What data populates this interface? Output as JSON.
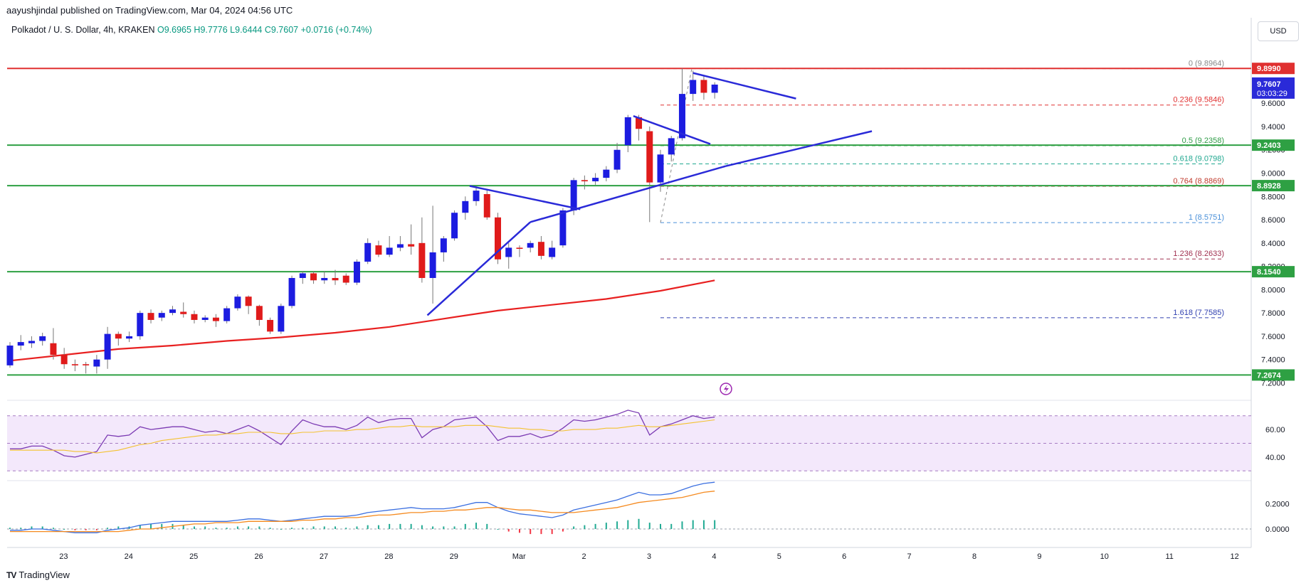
{
  "header": {
    "publisher": "aayushjindal published on TradingView.com, Mar 04, 2024 04:56 UTC",
    "symbol": "Polkadot / U. S. Dollar, 4h, KRAKEN",
    "open": "O9.6965",
    "high": "H9.7776",
    "low": "L9.6444",
    "close": "C9.7607",
    "change": "+0.0716 (+0.74%)"
  },
  "currency_button": "USD",
  "footer": {
    "logo_text": "TradingView"
  },
  "colors": {
    "up": "#1c1ce0",
    "down": "#e01b1b",
    "ma": "#e82020",
    "support": "#2ea043",
    "resistance": "#e03030",
    "trendline": "#2a2ad8",
    "rsi": "#7b3ab3",
    "rsi_ma": "#f3c230",
    "macd": "#3b6fe0",
    "signal": "#f58a1f"
  },
  "chart_data": [
    {
      "type": "candlestick",
      "title": "Polkadot / U. S. Dollar, 4h, KRAKEN",
      "ylim": [
        7.16,
        10.12
      ],
      "y_ticks": [
        "9.6000",
        "9.4000",
        "9.2000",
        "9.0000",
        "8.8000",
        "8.6000",
        "8.4000",
        "8.2000",
        "8.0000",
        "7.8000",
        "7.6000",
        "7.4000",
        "7.2000"
      ],
      "x_day_index": [
        0,
        1,
        2,
        3,
        4,
        5,
        6,
        7,
        8,
        9,
        10,
        11,
        12,
        13,
        14,
        15,
        16,
        17,
        18,
        19
      ],
      "x_labels": [
        "23",
        "24",
        "25",
        "26",
        "27",
        "28",
        "29",
        "Mar",
        "2",
        "3",
        "4",
        "5",
        "6",
        "7",
        "8",
        "9",
        "10",
        "11",
        "12"
      ],
      "x_label_day_index": [
        1,
        2,
        3,
        4,
        5,
        6,
        7,
        8,
        9,
        10,
        11,
        12,
        13,
        14,
        15,
        16,
        17,
        18,
        19
      ],
      "candles": [
        [
          7.35,
          7.52,
          7.55,
          7.33
        ],
        [
          7.52,
          7.55,
          7.61,
          7.48
        ],
        [
          7.54,
          7.56,
          7.6,
          7.5
        ],
        [
          7.56,
          7.6,
          7.63,
          7.52
        ],
        [
          7.54,
          7.44,
          7.67,
          7.4
        ],
        [
          7.44,
          7.36,
          7.5,
          7.32
        ],
        [
          7.36,
          7.35,
          7.4,
          7.3
        ],
        [
          7.36,
          7.35,
          7.38,
          7.28
        ],
        [
          7.34,
          7.4,
          7.44,
          7.28
        ],
        [
          7.4,
          7.62,
          7.68,
          7.32
        ],
        [
          7.62,
          7.58,
          7.64,
          7.52
        ],
        [
          7.58,
          7.6,
          7.64,
          7.55
        ],
        [
          7.6,
          7.8,
          7.82,
          7.57
        ],
        [
          7.8,
          7.74,
          7.83,
          7.71
        ],
        [
          7.76,
          7.8,
          7.82,
          7.73
        ],
        [
          7.8,
          7.83,
          7.86,
          7.78
        ],
        [
          7.81,
          7.79,
          7.89,
          7.76
        ],
        [
          7.79,
          7.74,
          7.82,
          7.71
        ],
        [
          7.74,
          7.76,
          7.78,
          7.72
        ],
        [
          7.76,
          7.73,
          7.79,
          7.68
        ],
        [
          7.73,
          7.84,
          7.86,
          7.71
        ],
        [
          7.84,
          7.94,
          7.96,
          7.82
        ],
        [
          7.94,
          7.86,
          7.95,
          7.79
        ],
        [
          7.86,
          7.74,
          7.87,
          7.69
        ],
        [
          7.74,
          7.64,
          7.76,
          7.62
        ],
        [
          7.64,
          7.86,
          7.88,
          7.62
        ],
        [
          7.86,
          8.1,
          8.12,
          7.84
        ],
        [
          8.1,
          8.14,
          8.16,
          8.05
        ],
        [
          8.14,
          8.08,
          8.16,
          8.05
        ],
        [
          8.08,
          8.1,
          8.16,
          8.05
        ],
        [
          8.1,
          8.08,
          8.17,
          8.04
        ],
        [
          8.12,
          8.06,
          8.14,
          8.04
        ],
        [
          8.06,
          8.24,
          8.26,
          8.04
        ],
        [
          8.24,
          8.4,
          8.44,
          8.22
        ],
        [
          8.38,
          8.3,
          8.42,
          8.28
        ],
        [
          8.3,
          8.36,
          8.46,
          8.28
        ],
        [
          8.36,
          8.39,
          8.46,
          8.33
        ],
        [
          8.39,
          8.37,
          8.56,
          8.3
        ],
        [
          8.4,
          8.1,
          8.62,
          8.06
        ],
        [
          8.1,
          8.32,
          8.72,
          7.88
        ],
        [
          8.32,
          8.44,
          8.46,
          8.24
        ],
        [
          8.44,
          8.66,
          8.68,
          8.42
        ],
        [
          8.66,
          8.76,
          8.8,
          8.6
        ],
        [
          8.76,
          8.85,
          8.89,
          8.72
        ],
        [
          8.82,
          8.62,
          8.86,
          8.6
        ],
        [
          8.62,
          8.26,
          8.66,
          8.22
        ],
        [
          8.28,
          8.36,
          8.4,
          8.18
        ],
        [
          8.36,
          8.35,
          8.38,
          8.28
        ],
        [
          8.36,
          8.4,
          8.42,
          8.32
        ],
        [
          8.41,
          8.29,
          8.46,
          8.26
        ],
        [
          8.28,
          8.36,
          8.42,
          8.26
        ],
        [
          8.38,
          8.68,
          8.7,
          8.36
        ],
        [
          8.68,
          8.94,
          8.96,
          8.64
        ],
        [
          8.94,
          8.93,
          8.98,
          8.86
        ],
        [
          8.93,
          8.96,
          9.0,
          8.9
        ],
        [
          8.96,
          9.03,
          9.06,
          8.93
        ],
        [
          9.03,
          9.2,
          9.26,
          9.0
        ],
        [
          9.24,
          9.48,
          9.5,
          9.18
        ],
        [
          9.48,
          9.38,
          9.5,
          9.28
        ],
        [
          9.36,
          8.92,
          9.4,
          8.58
        ],
        [
          8.92,
          9.16,
          9.2,
          8.84
        ],
        [
          9.16,
          9.3,
          9.32,
          9.1
        ],
        [
          9.3,
          9.68,
          9.9,
          9.28
        ],
        [
          9.68,
          9.8,
          9.88,
          9.62
        ],
        [
          9.8,
          9.69,
          9.84,
          9.63
        ],
        [
          9.69,
          9.76,
          9.78,
          9.64
        ]
      ],
      "moving_average": [
        [
          0,
          7.39
        ],
        [
          5,
          7.44
        ],
        [
          10,
          7.49
        ],
        [
          15,
          7.52
        ],
        [
          20,
          7.56
        ],
        [
          25,
          7.59
        ],
        [
          30,
          7.63
        ],
        [
          35,
          7.68
        ],
        [
          40,
          7.75
        ],
        [
          45,
          7.82
        ],
        [
          50,
          7.87
        ],
        [
          55,
          7.92
        ],
        [
          60,
          7.99
        ],
        [
          65,
          8.08
        ]
      ],
      "horizontal_levels": [
        {
          "price": 9.899,
          "label": "9.8990",
          "kind": "resistance"
        },
        {
          "price": 9.2403,
          "label": "9.2403",
          "kind": "support"
        },
        {
          "price": 8.8928,
          "label": "8.8928",
          "kind": "support"
        },
        {
          "price": 8.154,
          "label": "8.1540",
          "kind": "support"
        },
        {
          "price": 7.2674,
          "label": "7.2674",
          "kind": "support"
        }
      ],
      "current_price": {
        "label": "9.7607",
        "countdown": "03:03:29"
      },
      "fibonacci": [
        {
          "ratio": "0",
          "value": "9.8964",
          "price": 9.8964,
          "color": "#888888"
        },
        {
          "ratio": "0.236",
          "value": "9.5846",
          "price": 9.5846,
          "color": "#e03030"
        },
        {
          "ratio": "0.5",
          "value": "9.2358",
          "price": 9.2358,
          "color": "#2e9c46"
        },
        {
          "ratio": "0.618",
          "value": "9.0798",
          "price": 9.0798,
          "color": "#20a890"
        },
        {
          "ratio": "0.764",
          "value": "8.8869",
          "price": 8.8869,
          "color": "#c0392b"
        },
        {
          "ratio": "1",
          "value": "8.5751",
          "price": 8.5751,
          "color": "#4a90d9"
        },
        {
          "ratio": "1.236",
          "value": "8.2633",
          "price": 8.2633,
          "color": "#a03050"
        },
        {
          "ratio": "1.618",
          "value": "7.7585",
          "price": 7.7585,
          "color": "#3040b0"
        }
      ],
      "trendlines": [
        {
          "from": [
            38.5,
            7.78
          ],
          "to": [
            48.0,
            8.58
          ]
        },
        {
          "from": [
            48.0,
            8.58
          ],
          "to": [
            66.0,
            9.06
          ]
        },
        {
          "from": [
            66.0,
            9.06
          ],
          "to": [
            79.5,
            9.36
          ]
        },
        {
          "from": [
            42.4,
            8.89
          ],
          "to": [
            52.6,
            8.69
          ]
        },
        {
          "from": [
            57.5,
            9.49
          ],
          "to": [
            64.6,
            9.25
          ]
        },
        {
          "from": [
            63.0,
            9.86
          ],
          "to": [
            72.5,
            9.64
          ]
        }
      ]
    },
    {
      "type": "line",
      "title": "RSI",
      "ylim": [
        25,
        75
      ],
      "y_ticks": [
        "60.00",
        "40.00"
      ],
      "series": [
        {
          "name": "RSI",
          "values": [
            46,
            46,
            48,
            48,
            45,
            41,
            40,
            42,
            44,
            56,
            55,
            56,
            62,
            60,
            61,
            62,
            62,
            60,
            58,
            59,
            57,
            60,
            63,
            59,
            54,
            49,
            59,
            67,
            64,
            62,
            62,
            60,
            63,
            69,
            65,
            67,
            68,
            68,
            54,
            60,
            62,
            67,
            68,
            69,
            62,
            52,
            55,
            55,
            57,
            54,
            56,
            61,
            67,
            66,
            67,
            69,
            71,
            74,
            72,
            56,
            62,
            64,
            67,
            70,
            68,
            69
          ]
        },
        {
          "name": "RSI-based MA",
          "values": [
            45,
            45,
            45,
            45,
            45,
            45,
            44,
            44,
            43,
            44,
            45,
            47,
            49,
            50,
            52,
            53,
            54,
            55,
            56,
            56,
            57,
            57,
            58,
            58,
            58,
            57,
            57,
            58,
            58,
            59,
            59,
            59,
            60,
            60,
            61,
            62,
            62,
            63,
            62,
            62,
            62,
            62,
            63,
            63,
            63,
            62,
            61,
            61,
            60,
            60,
            59,
            59,
            60,
            60,
            60,
            61,
            61,
            62,
            63,
            62,
            62,
            63,
            64,
            65,
            66,
            67
          ]
        }
      ]
    },
    {
      "type": "line",
      "title": "MACD",
      "ylim": [
        -0.09,
        0.36
      ],
      "y_ticks": [
        "0.2000",
        "0.0000"
      ],
      "series": [
        {
          "name": "MACD",
          "values": [
            -0.01,
            -0.01,
            0.0,
            0.0,
            -0.01,
            -0.02,
            -0.03,
            -0.03,
            -0.03,
            -0.01,
            0.0,
            0.01,
            0.03,
            0.04,
            0.05,
            0.06,
            0.06,
            0.06,
            0.06,
            0.06,
            0.06,
            0.07,
            0.08,
            0.08,
            0.07,
            0.06,
            0.07,
            0.08,
            0.09,
            0.1,
            0.1,
            0.1,
            0.11,
            0.13,
            0.14,
            0.15,
            0.16,
            0.17,
            0.16,
            0.16,
            0.16,
            0.17,
            0.19,
            0.21,
            0.21,
            0.17,
            0.14,
            0.12,
            0.11,
            0.1,
            0.09,
            0.11,
            0.15,
            0.17,
            0.19,
            0.21,
            0.23,
            0.26,
            0.29,
            0.27,
            0.27,
            0.28,
            0.31,
            0.34,
            0.36,
            0.37
          ]
        },
        {
          "name": "Signal",
          "values": [
            -0.02,
            -0.02,
            -0.02,
            -0.02,
            -0.02,
            -0.02,
            -0.02,
            -0.02,
            -0.02,
            -0.02,
            -0.02,
            -0.01,
            0.0,
            0.0,
            0.01,
            0.02,
            0.03,
            0.04,
            0.04,
            0.05,
            0.05,
            0.05,
            0.06,
            0.06,
            0.06,
            0.06,
            0.06,
            0.07,
            0.07,
            0.08,
            0.08,
            0.09,
            0.09,
            0.1,
            0.11,
            0.11,
            0.12,
            0.13,
            0.13,
            0.14,
            0.14,
            0.15,
            0.15,
            0.16,
            0.17,
            0.17,
            0.16,
            0.15,
            0.15,
            0.14,
            0.13,
            0.13,
            0.13,
            0.14,
            0.15,
            0.16,
            0.17,
            0.19,
            0.21,
            0.22,
            0.23,
            0.24,
            0.25,
            0.27,
            0.29,
            0.3
          ]
        }
      ]
    }
  ]
}
